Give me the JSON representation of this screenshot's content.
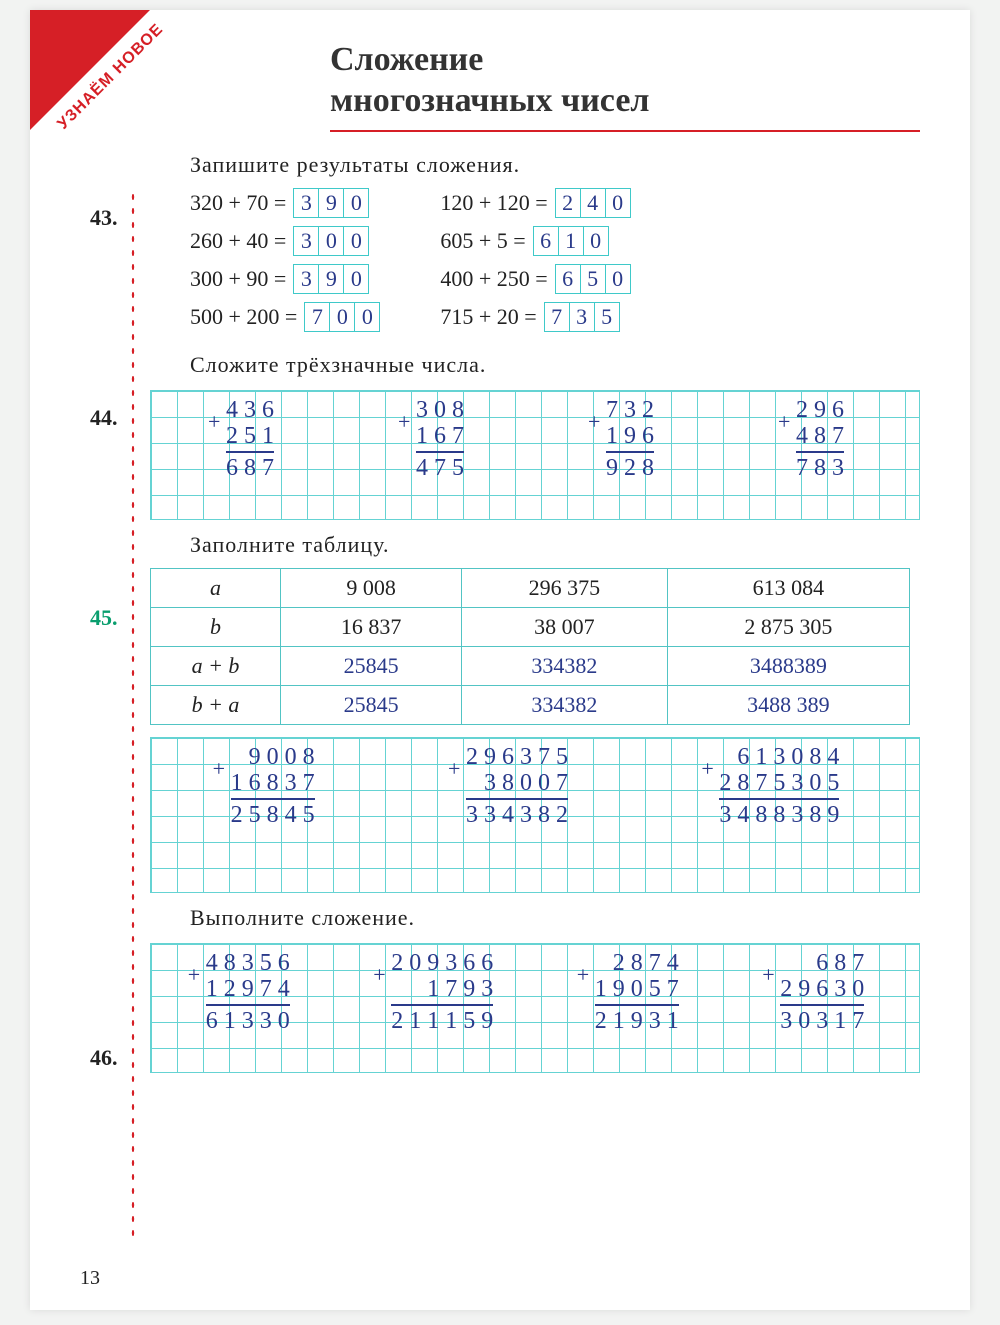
{
  "corner_label": "УЗНАЁМ НОВОЕ",
  "title_line1": "Сложение",
  "title_line2": "многозначных чисел",
  "page_number": "13",
  "ex43": {
    "num": "43.",
    "instr": "Запишите результаты сложения.",
    "left": [
      {
        "a": "320",
        "op": "+",
        "b": "70",
        "ans": [
          "3",
          "9",
          "0"
        ]
      },
      {
        "a": "260",
        "op": "+",
        "b": "40",
        "ans": [
          "3",
          "0",
          "0"
        ]
      },
      {
        "a": "300",
        "op": "+",
        "b": "90",
        "ans": [
          "3",
          "9",
          "0"
        ]
      },
      {
        "a": "500",
        "op": "+",
        "b": "200",
        "ans": [
          "7",
          "0",
          "0"
        ]
      }
    ],
    "right": [
      {
        "a": "120",
        "op": "+",
        "b": "120",
        "ans": [
          "2",
          "4",
          "0"
        ]
      },
      {
        "a": "605",
        "op": "+",
        "b": "5",
        "ans": [
          "6",
          "1",
          "0"
        ]
      },
      {
        "a": "400",
        "op": "+",
        "b": "250",
        "ans": [
          "6",
          "5",
          "0"
        ]
      },
      {
        "a": "715",
        "op": "+",
        "b": "20",
        "ans": [
          "7",
          "3",
          "5"
        ]
      }
    ]
  },
  "ex44": {
    "num": "44.",
    "instr": "Сложите трёхзначные числа.",
    "stacks": [
      {
        "a": "4 3 6",
        "b": "2 5 1",
        "sum": "6 8 7"
      },
      {
        "a": "3 0 8",
        "b": "1 6 7",
        "sum": "4 7 5"
      },
      {
        "a": "7 3 2",
        "b": "1 9 6",
        "sum": "9 2 8"
      },
      {
        "a": "2 9 6",
        "b": "4 8 7",
        "sum": "7 8 3"
      }
    ]
  },
  "ex45": {
    "num": "45.",
    "instr": "Заполните таблицу.",
    "headers": {
      "r1": "a",
      "r2": "b",
      "r3": "a + b",
      "r4": "b + a"
    },
    "cols": [
      {
        "a": "9 008",
        "b": "16 837",
        "ab": "25845",
        "ba": "25845"
      },
      {
        "a": "296 375",
        "b": "38 007",
        "ab": "334382",
        "ba": "334382"
      },
      {
        "a": "613 084",
        "b": "2 875 305",
        "ab": "3488389",
        "ba": "3488 389"
      }
    ],
    "work": [
      {
        "a": "9 0 0 8",
        "b": "1 6 8 3 7",
        "sum": "2 5 8 4 5"
      },
      {
        "a": "2 9 6 3 7 5",
        "b": "3 8 0 0 7",
        "sum": "3 3 4 3 8 2"
      },
      {
        "a": "6 1 3 0 8 4",
        "b": "2 8 7 5 3 0 5",
        "sum": "3 4 8 8 3 8 9"
      }
    ]
  },
  "ex46": {
    "num": "46.",
    "instr": "Выполните сложение.",
    "stacks": [
      {
        "a": "4 8 3 5 6",
        "b": "1 2 9 7 4",
        "sum": "6 1 3 3 0"
      },
      {
        "a": "2 0 9 3 6 6",
        "b": "1 7 9 3",
        "sum": "2 1 1 1 5 9"
      },
      {
        "a": "2 8 7 4",
        "b": "1 9 0 5 7",
        "sum": "2 1 9 3 1"
      },
      {
        "a": "6 8 7",
        "b": "2 9 6 3 0",
        "sum": "3 0 3 1 7"
      }
    ]
  }
}
